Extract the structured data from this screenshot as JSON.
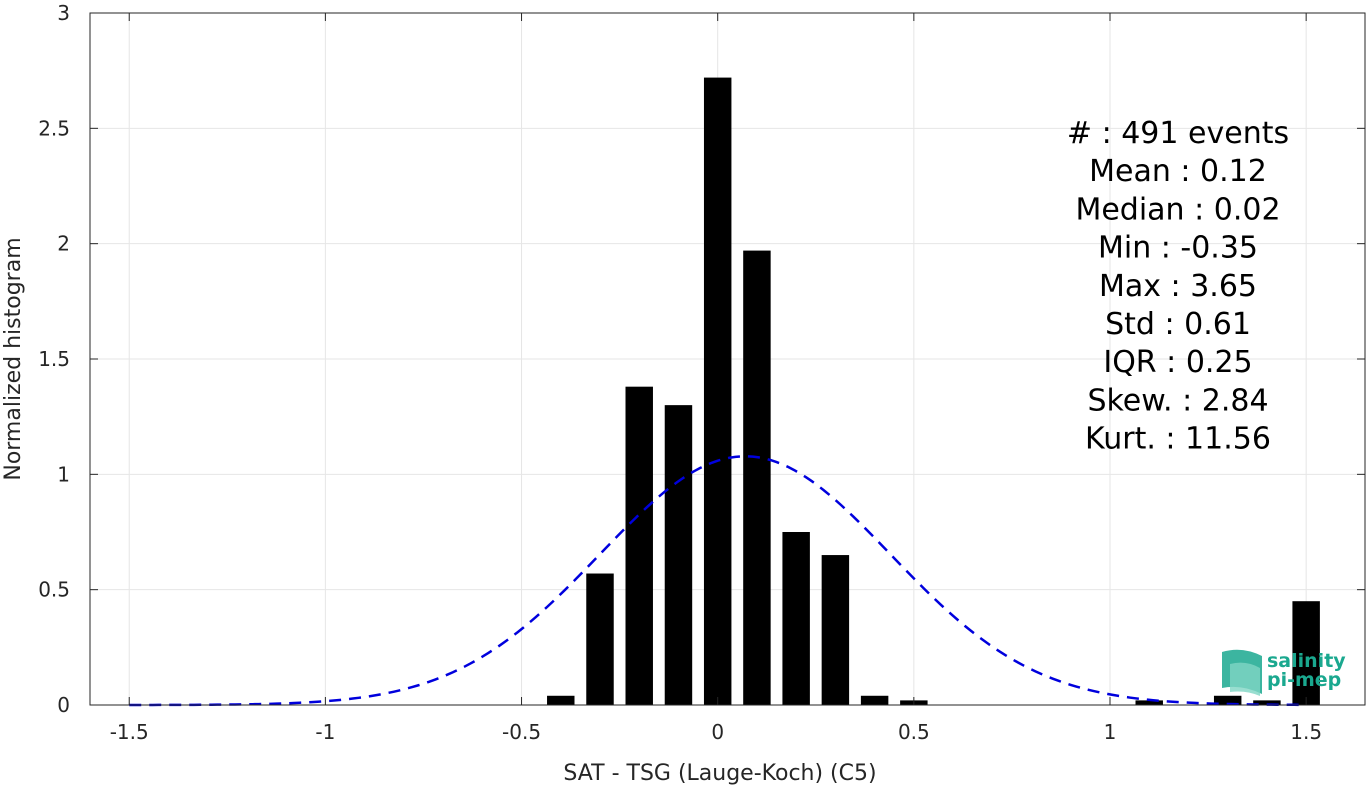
{
  "chart_data": {
    "type": "bar",
    "xlabel": "SAT - TSG (Lauge-Koch) (C5)",
    "ylabel": "Normalized histogram",
    "xlim": [
      -1.6,
      1.65
    ],
    "ylim": [
      0,
      3
    ],
    "xticks": [
      -1.5,
      -1,
      -0.5,
      0,
      0.5,
      1,
      1.5
    ],
    "xtick_labels": [
      "-1.5",
      "-1",
      "-0.5",
      "0",
      "0.5",
      "1",
      "1.5"
    ],
    "yticks": [
      0,
      0.5,
      1,
      1.5,
      2,
      2.5,
      3
    ],
    "ytick_labels": [
      "0",
      "0.5",
      "1",
      "1.5",
      "2",
      "2.5",
      "3"
    ],
    "grid": true,
    "bar_color": "#000000",
    "bar_width": 0.07,
    "bars": {
      "x": [
        -0.4,
        -0.3,
        -0.2,
        -0.1,
        0.0,
        0.1,
        0.2,
        0.3,
        0.4,
        0.5,
        1.1,
        1.3,
        1.4,
        1.5
      ],
      "values": [
        0.04,
        0.57,
        1.38,
        1.3,
        2.72,
        1.97,
        0.75,
        0.65,
        0.04,
        0.02,
        0.02,
        0.04,
        0.02,
        0.45
      ]
    },
    "fit_curve": {
      "style": "dashed",
      "color": "#0000dd",
      "mean": 0.07,
      "std": 0.37,
      "x_range": [
        -1.5,
        1.5
      ]
    },
    "stats_text": [
      "#  : 491 events",
      "Mean : 0.12",
      "Median : 0.02",
      "Min : -0.35",
      "Max : 3.65",
      "Std : 0.61",
      "IQR : 0.25",
      "Skew. : 2.84",
      "Kurt. : 11.56"
    ]
  },
  "logo": {
    "line1": "salinity",
    "line2": "pi-mep",
    "color": "#1aa88f"
  }
}
